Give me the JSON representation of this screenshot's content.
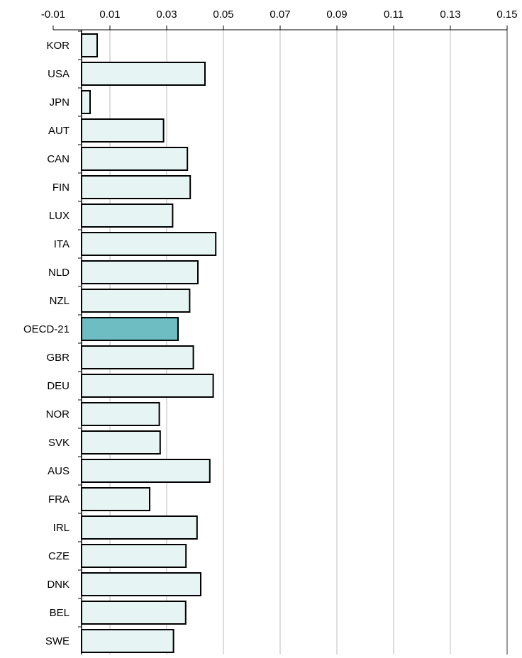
{
  "chart_data": {
    "type": "bar",
    "orientation": "horizontal",
    "x_ticks": [
      "-0.01",
      "0.01",
      "0.03",
      "0.05",
      "0.07",
      "0.09",
      "0.11",
      "0.13",
      "0.15"
    ],
    "x_tick_values": [
      -0.01,
      0.01,
      0.03,
      0.05,
      0.07,
      0.09,
      0.11,
      0.13,
      0.15
    ],
    "xlim": [
      -0.01,
      0.15
    ],
    "x_axis_position": "top",
    "grid": "vertical",
    "categories": [
      "KOR",
      "USA",
      "JPN",
      "AUT",
      "CAN",
      "FIN",
      "LUX",
      "ITA",
      "NLD",
      "NZL",
      "OECD-21",
      "GBR",
      "DEU",
      "NOR",
      "SVK",
      "AUS",
      "FRA",
      "IRL",
      "CZE",
      "DNK",
      "BEL",
      "SWE"
    ],
    "values": [
      0.0055,
      0.0435,
      0.003,
      0.0289,
      0.0373,
      0.0383,
      0.0321,
      0.0473,
      0.041,
      0.0381,
      0.034,
      0.0394,
      0.0464,
      0.0274,
      0.0277,
      0.0452,
      0.024,
      0.0407,
      0.0368,
      0.042,
      0.0367,
      0.0324
    ],
    "highlight": "OECD-21",
    "colors": {
      "bar_fill": "#e6f4f4",
      "bar_highlight_fill": "#6dbdc2",
      "bar_stroke": "#000000",
      "grid": "#bbbbbb",
      "axis": "#000000",
      "frame": "#777777"
    }
  }
}
